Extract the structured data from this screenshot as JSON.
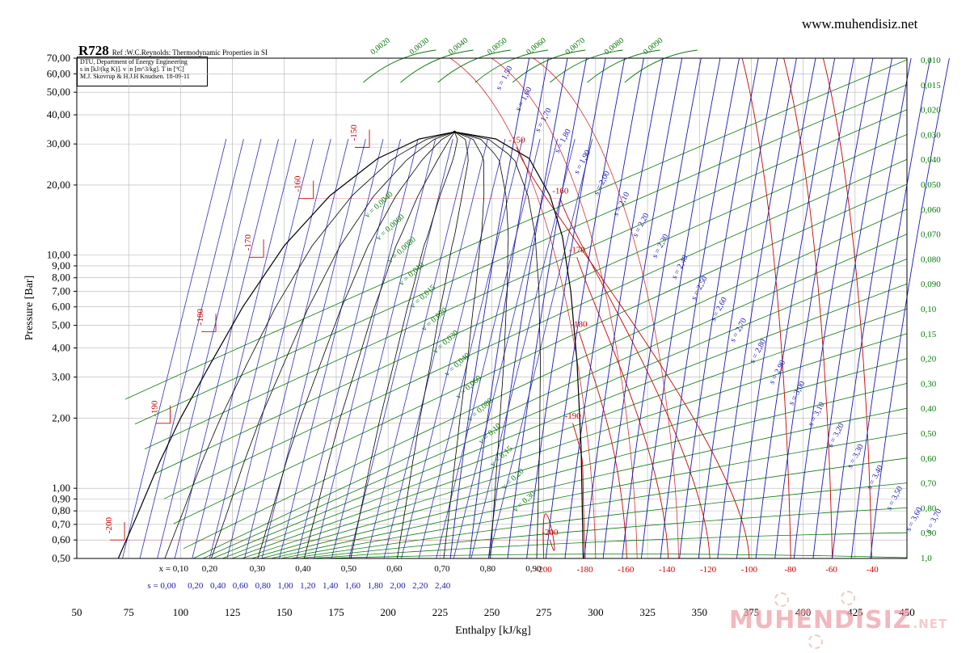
{
  "header": {
    "site": "www.muhendisiz.net",
    "title": "R728",
    "reference": "Ref :W.C.Reynolds: Thermodynamic Properties in SI",
    "info_lines": [
      "DTU, Department of Energy Engineering",
      "s in [kJ/(kg K)]. v in [m^3/kg]. T in [ºC]",
      "M.J. Skovrup & H.J.H Knudsen. 18-09-11"
    ]
  },
  "watermark": {
    "text": "MUHENDISIZ",
    "suffix": ".NET"
  },
  "colors": {
    "frame": "#000000",
    "grid": "#b4b4b4",
    "temperature": "#cc0000",
    "entropy": "#1a1ab4",
    "volume": "#0a7a0a",
    "quality": "#000000",
    "dome": "#000000"
  },
  "chart_data": {
    "type": "line",
    "subtype": "pressure-enthalpy diagram",
    "xlabel": "Enthalpy [kJ/kg]",
    "ylabel": "Pressure [Bar]",
    "xlim": [
      50,
      450
    ],
    "ylim": [
      0.5,
      70
    ],
    "yscale": "log",
    "grid": true,
    "x_ticks": [
      "50",
      "75",
      "100",
      "125",
      "150",
      "175",
      "200",
      "225",
      "250",
      "275",
      "300",
      "325",
      "350",
      "375",
      "400",
      "425",
      "450"
    ],
    "y_ticks": [
      {
        "value": 0.5,
        "label": "0,50"
      },
      {
        "value": 0.6,
        "label": "0,60"
      },
      {
        "value": 0.7,
        "label": "0,70"
      },
      {
        "value": 0.8,
        "label": "0,80"
      },
      {
        "value": 0.9,
        "label": "0,90"
      },
      {
        "value": 1.0,
        "label": "1,00"
      },
      {
        "value": 2.0,
        "label": "2,00"
      },
      {
        "value": 3.0,
        "label": "3,00"
      },
      {
        "value": 4.0,
        "label": "4,00"
      },
      {
        "value": 5.0,
        "label": "5,00"
      },
      {
        "value": 6.0,
        "label": "6,00"
      },
      {
        "value": 7.0,
        "label": "7,00"
      },
      {
        "value": 8.0,
        "label": "8,00"
      },
      {
        "value": 9.0,
        "label": "9,00"
      },
      {
        "value": 10.0,
        "label": "10,00"
      },
      {
        "value": 20.0,
        "label": "20,00"
      },
      {
        "value": 30.0,
        "label": "30,00"
      },
      {
        "value": 40.0,
        "label": "40,00"
      },
      {
        "value": 50.0,
        "label": "50,00"
      },
      {
        "value": 60.0,
        "label": "60,00"
      },
      {
        "value": 70.0,
        "label": "70,00"
      }
    ],
    "saturation_dome": {
      "liquid_h": [
        70,
        80,
        90,
        100,
        115,
        130,
        150,
        172,
        195,
        215,
        232
      ],
      "liquid_p": [
        0.5,
        0.8,
        1.3,
        2.0,
        3.5,
        6.0,
        11.0,
        18.0,
        26.0,
        31.5,
        33.8
      ],
      "vapor_h": [
        232,
        252,
        268,
        278,
        284,
        288,
        291,
        293,
        294
      ],
      "vapor_p": [
        33.8,
        31.5,
        26.0,
        18.0,
        12.0,
        7.0,
        3.5,
        1.5,
        0.5
      ]
    },
    "critical_point": {
      "h": 232,
      "p": 33.8
    },
    "quality_lines": {
      "values": [
        0.1,
        0.2,
        0.3,
        0.4,
        0.5,
        0.6,
        0.7,
        0.8,
        0.9
      ],
      "labels": [
        "x = 0,10",
        "0,20",
        "0,30",
        "0,40",
        "0,50",
        "0,60",
        "0,70",
        "0,80",
        "0,90"
      ],
      "bottom_h": [
        92,
        114,
        137,
        159,
        181,
        203,
        226,
        248,
        270
      ]
    },
    "liquid_entropy_labels": [
      "s = 0,00",
      "0,20",
      "0,40",
      "0,60",
      "0,80",
      "1,00",
      "1,20",
      "1,40",
      "1,60",
      "1,80",
      "2,00",
      "2,20",
      "2,40"
    ],
    "isotherms": [
      {
        "T": -200,
        "label": "-200",
        "bottom_label": "-200",
        "h_liq": 73,
        "p_sat": 0.6,
        "h_vap": 278,
        "h_bottom": 275
      },
      {
        "T": -190,
        "label": "-190",
        "bottom_label": "-180",
        "h_liq": 95,
        "p_sat": 1.9,
        "h_vap": 289,
        "h_bottom": 295
      },
      {
        "T": -180,
        "label": "-180",
        "bottom_label": "-160",
        "h_liq": 117,
        "p_sat": 4.7,
        "h_vap": 292,
        "h_bottom": 315
      },
      {
        "T": -170,
        "label": "-170",
        "bottom_label": "-140",
        "h_liq": 140,
        "p_sat": 9.8,
        "h_vap": 291,
        "h_bottom": 335
      },
      {
        "T": -160,
        "label": "-160",
        "bottom_label": "-120",
        "h_liq": 164,
        "p_sat": 17.5,
        "h_vap": 283,
        "h_bottom": 355
      },
      {
        "T": -150,
        "label": "-150",
        "bottom_label": "-100",
        "h_liq": 191,
        "p_sat": 29.0,
        "h_vap": 262,
        "h_bottom": 374
      },
      {
        "T": -80,
        "label": "",
        "bottom_label": "-80",
        "h_bottom": 394
      },
      {
        "T": -60,
        "label": "",
        "bottom_label": "-60",
        "h_bottom": 414
      },
      {
        "T": -40,
        "label": "",
        "bottom_label": "-40",
        "h_bottom": 433
      }
    ],
    "temperature_axis_labels": [
      "-200",
      "-180",
      "-160",
      "-140",
      "-120",
      "-100",
      "-80",
      "-60",
      "-40"
    ],
    "isentropes": {
      "values": [
        1.5,
        1.6,
        1.7,
        1.8,
        1.9,
        2.0,
        2.1,
        2.2,
        2.3,
        2.4,
        2.5,
        2.6,
        2.7,
        2.8,
        2.9,
        3.0,
        3.1,
        3.2,
        3.3,
        3.4,
        3.5,
        3.6,
        3.7
      ],
      "labels": [
        "s = 1,50",
        "s = 1,60",
        "s = 1,70",
        "s = 1,80",
        "s = 1,90",
        "s = 2,00",
        "s = 2,10",
        "s = 2,20",
        "s = 2,30",
        "s = 2,40",
        "s = 2,50",
        "s = 2,60",
        "s = 2,70",
        "s = 2,80",
        "s = 2,90",
        "s = 3,00",
        "s = 3,10",
        "s = 3,20",
        "s = 3,30",
        "s = 3,40",
        "s = 3,50",
        "s = 3,60",
        "s = 3,70"
      ]
    },
    "isochores": {
      "top_labels": [
        "0,0020",
        "0,0030",
        "0,0040",
        "0,0050",
        "0,0060",
        "0,0070",
        "0,0080",
        "0,0090"
      ],
      "right_labels": [
        "0,010",
        "0,015",
        "0,020",
        "0,030",
        "0,040",
        "0,050",
        "0,060",
        "0,070",
        "0,080",
        "0,090",
        "0,10",
        "0,15",
        "0,20",
        "0,30",
        "0,40",
        "0,50",
        "0,60",
        "0,70",
        "0,80",
        "0,90",
        "1,0"
      ],
      "dome_labels": [
        "v = 0,0040",
        "v = 0,0060",
        "v = 0,0080",
        "v = 0,010",
        "v = 0,015",
        "v = 0,020",
        "v = 0,030",
        "v = 0,040",
        "v = 0,060",
        "v = 0,080",
        "v = 0,10",
        "v = 0,15",
        "v = 0,20",
        "v = 0,30"
      ]
    }
  }
}
